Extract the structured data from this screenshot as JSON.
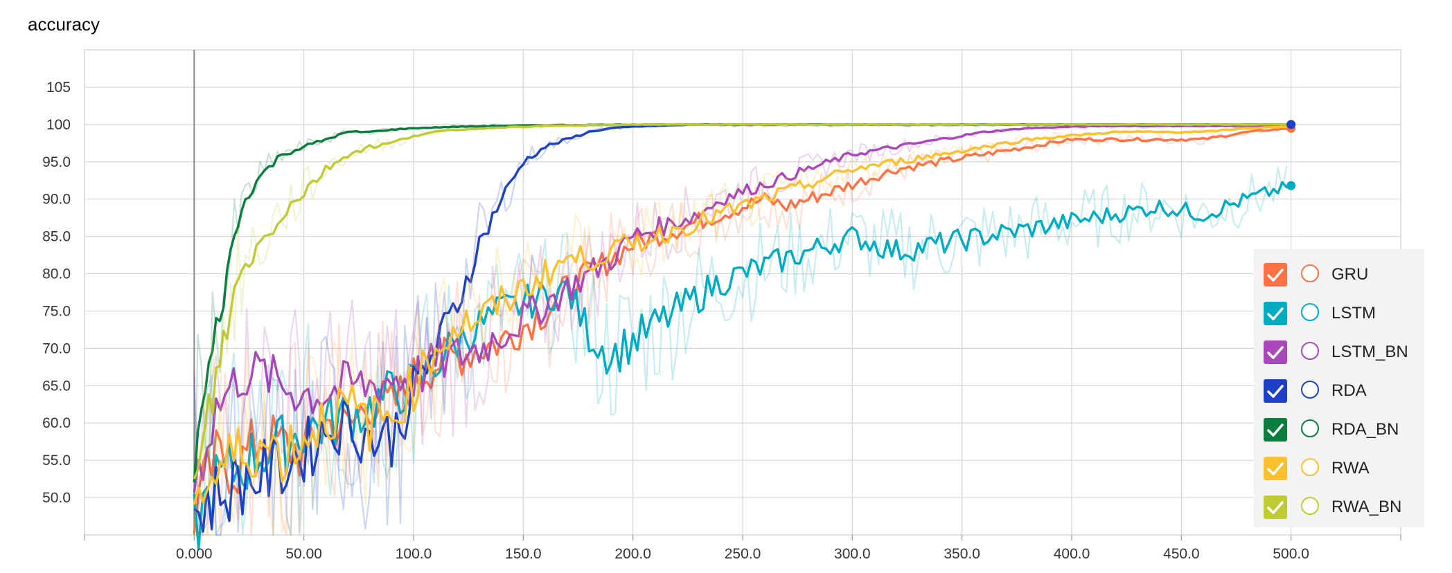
{
  "chart_data": {
    "type": "line",
    "title": "accuracy",
    "xlim": [
      -50,
      550
    ],
    "ylim": [
      45,
      110
    ],
    "x_ticks": [
      "0.000",
      "50.00",
      "100.0",
      "150.0",
      "200.0",
      "250.0",
      "300.0",
      "350.0",
      "400.0",
      "450.0",
      "500.0"
    ],
    "x_tick_values": [
      0,
      50,
      100,
      150,
      200,
      250,
      300,
      350,
      400,
      450,
      500
    ],
    "y_ticks": [
      "50.0",
      "55.0",
      "60.0",
      "65.0",
      "70.0",
      "75.0",
      "80.0",
      "85.0",
      "90.0",
      "95.0",
      "100",
      "105"
    ],
    "y_tick_values": [
      50,
      55,
      60,
      65,
      70,
      75,
      80,
      85,
      90,
      95,
      100,
      105
    ],
    "grid": true,
    "legend_position": "right",
    "series": [
      {
        "name": "GRU",
        "color": "#ff7043",
        "x": [
          0,
          10,
          20,
          30,
          40,
          50,
          60,
          70,
          80,
          90,
          100,
          110,
          120,
          130,
          140,
          150,
          160,
          170,
          180,
          190,
          200,
          210,
          220,
          230,
          240,
          250,
          260,
          270,
          280,
          290,
          300,
          320,
          340,
          360,
          380,
          400,
          420,
          440,
          460,
          480,
          500
        ],
        "y": [
          48,
          55,
          54,
          58,
          57,
          56,
          60,
          59,
          63,
          62,
          66,
          68,
          69,
          70,
          71,
          73,
          75,
          78,
          80,
          82,
          84,
          85,
          86,
          87,
          88,
          89,
          90,
          89,
          90,
          91,
          92,
          94,
          95,
          96,
          97,
          98,
          98,
          98,
          98,
          99,
          99.5
        ]
      },
      {
        "name": "LSTM",
        "color": "#00acc1",
        "x": [
          0,
          10,
          20,
          30,
          40,
          50,
          60,
          70,
          80,
          90,
          100,
          110,
          120,
          130,
          140,
          150,
          160,
          170,
          180,
          190,
          200,
          210,
          220,
          230,
          240,
          250,
          260,
          270,
          280,
          290,
          300,
          320,
          340,
          360,
          380,
          400,
          420,
          440,
          460,
          480,
          500
        ],
        "y": [
          46,
          52,
          54,
          56,
          57,
          59,
          60,
          61,
          62,
          64,
          65,
          68,
          71,
          73,
          75,
          76,
          77,
          78,
          72,
          69,
          71,
          73,
          75,
          77,
          79,
          80,
          81,
          82,
          83,
          84,
          85,
          83,
          84,
          85,
          86,
          87,
          88,
          89,
          88,
          90,
          91.8
        ]
      },
      {
        "name": "LSTM_BN",
        "color": "#ab47bc",
        "x": [
          0,
          10,
          20,
          30,
          40,
          50,
          60,
          70,
          80,
          90,
          100,
          110,
          120,
          130,
          140,
          150,
          160,
          170,
          180,
          190,
          200,
          210,
          220,
          230,
          240,
          250,
          260,
          270,
          280,
          290,
          300,
          320,
          340,
          360,
          380,
          400,
          420,
          440,
          460,
          480,
          500
        ],
        "y": [
          52,
          62,
          66,
          67,
          65,
          64,
          64,
          65,
          65,
          66,
          66,
          68,
          69,
          70,
          72,
          74,
          76,
          78,
          80,
          82,
          85,
          86,
          87,
          88,
          90,
          91,
          92,
          93,
          94,
          95,
          96,
          97,
          98,
          99,
          99.5,
          99.7,
          99.8,
          99.8,
          99.8,
          99.8,
          99.8
        ]
      },
      {
        "name": "RDA",
        "color": "#1e40c8",
        "x": [
          0,
          10,
          20,
          30,
          40,
          50,
          60,
          70,
          80,
          90,
          100,
          110,
          120,
          130,
          140,
          150,
          160,
          170,
          180,
          190,
          200,
          210,
          220,
          230,
          240,
          250,
          300,
          350,
          400,
          450,
          500
        ],
        "y": [
          48,
          50,
          52,
          53,
          54,
          56,
          59,
          60,
          58,
          58,
          64,
          70,
          76,
          84,
          90,
          95,
          97,
          98,
          99,
          99.5,
          99.7,
          99.8,
          99.9,
          100,
          100,
          100,
          100,
          100,
          100,
          100,
          100
        ]
      },
      {
        "name": "RDA_BN",
        "color": "#0b7d3e",
        "x": [
          0,
          5,
          10,
          15,
          20,
          25,
          30,
          40,
          50,
          60,
          70,
          80,
          90,
          100,
          110,
          120,
          140,
          160,
          200,
          250,
          300,
          350,
          400,
          450,
          500
        ],
        "y": [
          55,
          64,
          72,
          80,
          87,
          91,
          93,
          96,
          97,
          98,
          99,
          99,
          99.3,
          99.5,
          99.6,
          99.7,
          99.8,
          99.9,
          100,
          100,
          100,
          100,
          100,
          100,
          100
        ]
      },
      {
        "name": "RWA",
        "color": "#fbc02d",
        "x": [
          0,
          10,
          20,
          30,
          40,
          50,
          60,
          70,
          80,
          90,
          100,
          110,
          120,
          130,
          140,
          150,
          160,
          170,
          180,
          190,
          200,
          210,
          220,
          230,
          240,
          250,
          260,
          270,
          280,
          290,
          300,
          320,
          340,
          360,
          380,
          400,
          420,
          440,
          460,
          480,
          500
        ],
        "y": [
          50,
          53,
          56,
          57,
          56,
          58,
          61,
          62,
          60,
          61,
          65,
          70,
          73,
          74,
          76,
          78,
          80,
          82,
          82,
          83,
          84,
          85,
          86,
          87,
          88,
          89,
          90,
          91,
          92,
          93,
          94,
          95,
          96,
          97,
          98,
          98.5,
          99,
          99,
          99,
          99.5,
          99.7
        ]
      },
      {
        "name": "RWA_BN",
        "color": "#c0ca33",
        "x": [
          0,
          5,
          10,
          15,
          20,
          25,
          30,
          40,
          50,
          60,
          70,
          80,
          90,
          100,
          110,
          120,
          140,
          160,
          180,
          200,
          250,
          300,
          350,
          400,
          450,
          500
        ],
        "y": [
          50,
          58,
          66,
          73,
          79,
          82,
          84,
          88,
          91,
          94,
          96,
          97,
          97.5,
          98.5,
          99,
          99.3,
          99.6,
          99.8,
          99.9,
          100,
          100,
          100,
          100,
          100,
          100,
          100
        ]
      }
    ]
  }
}
